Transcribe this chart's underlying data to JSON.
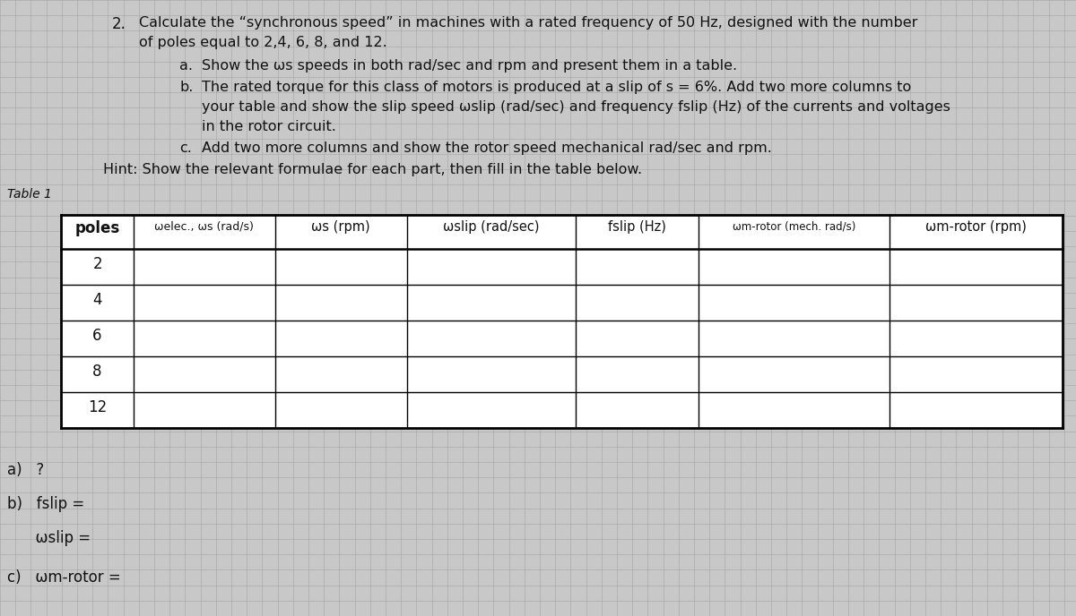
{
  "bg_color": "#c8c8c8",
  "paper_color": "#d4d4d4",
  "grid_color": "#aaaaaa",
  "text_color": "#111111",
  "title_number": "2.",
  "title_line1": "Calculate the “synchronous speed” in machines with a rated frequency of 50 Hz, designed with the number",
  "title_line2": "of poles equal to 2,4, 6, 8, and 12.",
  "item_a_label": "a.",
  "item_a_text": "Show the ωs speeds in both rad/sec and rpm and present them in a table.",
  "item_b_label": "b.",
  "item_b_line1": "The rated torque for this class of motors is produced at a slip of s = 6%. Add two more columns to",
  "item_b_line2": "your table and show the slip speed ωslip (rad/sec) and frequency fslip (Hz) of the currents and voltages",
  "item_b_line3": "in the rotor circuit.",
  "item_c_label": "c.",
  "item_c_text": "Add two more columns and show the rotor speed mechanical rad/sec and rpm.",
  "hint": "Hint: Show the relevant formulae for each part, then fill in the table below.",
  "table_label": "Table 1",
  "poles": [
    2,
    4,
    6,
    8,
    12
  ],
  "footer_a": "a)   ?",
  "footer_b1": "b)   fslip =",
  "footer_b2": "      ωslip =",
  "footer_c": "c)   ωm-rotor ="
}
